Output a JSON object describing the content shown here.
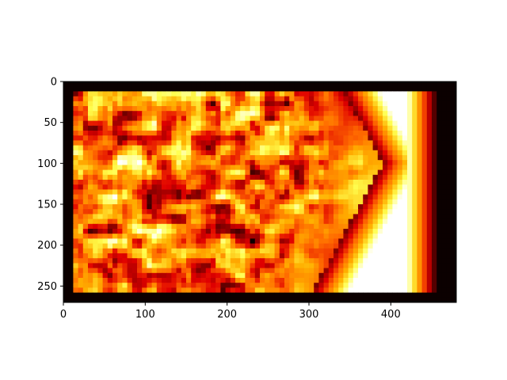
{
  "chart_data": {
    "type": "heatmap",
    "title": "",
    "xlabel": "",
    "ylabel": "",
    "colormap": "hot",
    "colormap_stops": [
      "#0b0000",
      "#7a0000",
      "#e00000",
      "#ff6a00",
      "#ffb000",
      "#ffff50",
      "#ffffff"
    ],
    "border_color": "#0b0000",
    "image_extent": {
      "x": [
        0,
        480
      ],
      "y": [
        0,
        270
      ]
    },
    "content_region": {
      "x": [
        15,
        465
      ],
      "y": [
        15,
        255
      ]
    },
    "xlim": [
      0,
      480
    ],
    "ylim": [
      270,
      0
    ],
    "x_ticks": [
      0,
      100,
      200,
      300,
      400
    ],
    "x_tick_labels": [
      "0",
      "100",
      "200",
      "300",
      "400"
    ],
    "y_ticks": [
      0,
      50,
      100,
      150,
      200,
      250
    ],
    "y_tick_labels": [
      "0",
      "50",
      "100",
      "150",
      "200",
      "250"
    ],
    "texture_regions": {
      "chevron_tip": {
        "x": 390,
        "y": 100
      },
      "right_bands_x": [
        420,
        470
      ],
      "noisy_region_x": [
        15,
        330
      ]
    }
  }
}
